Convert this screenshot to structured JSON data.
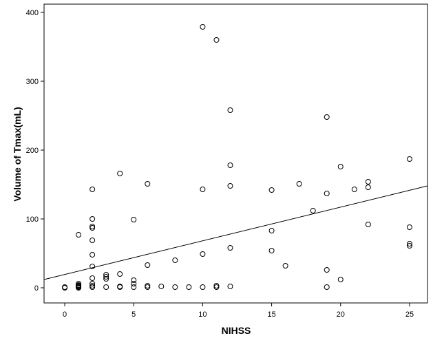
{
  "chart_data": {
    "type": "scatter",
    "title": "",
    "xlabel": "NIHSS",
    "ylabel": "Volume of Tmax(mL)",
    "xlim": [
      -1.5,
      26.3
    ],
    "ylim": [
      -22,
      412
    ],
    "xticks": [
      0,
      5,
      10,
      15,
      20,
      25
    ],
    "yticks": [
      0,
      100,
      200,
      300,
      400
    ],
    "grid": false,
    "legend": "none",
    "marker": "open-circle",
    "fit_line": {
      "x": [
        -1.5,
        26.3
      ],
      "y": [
        12,
        148
      ]
    },
    "points": [
      {
        "x": 0,
        "y": 1
      },
      {
        "x": 0,
        "y": 0
      },
      {
        "x": 1,
        "y": 77
      },
      {
        "x": 1,
        "y": 6
      },
      {
        "x": 1,
        "y": 4
      },
      {
        "x": 1,
        "y": 3
      },
      {
        "x": 1,
        "y": 2
      },
      {
        "x": 1,
        "y": 1
      },
      {
        "x": 1,
        "y": 0
      },
      {
        "x": 2,
        "y": 143
      },
      {
        "x": 2,
        "y": 100
      },
      {
        "x": 2,
        "y": 89
      },
      {
        "x": 2,
        "y": 87
      },
      {
        "x": 2,
        "y": 69
      },
      {
        "x": 2,
        "y": 48
      },
      {
        "x": 2,
        "y": 31
      },
      {
        "x": 2,
        "y": 14
      },
      {
        "x": 2,
        "y": 6
      },
      {
        "x": 2,
        "y": 3
      },
      {
        "x": 2,
        "y": 1
      },
      {
        "x": 3,
        "y": 19
      },
      {
        "x": 3,
        "y": 16
      },
      {
        "x": 3,
        "y": 13
      },
      {
        "x": 3,
        "y": 1
      },
      {
        "x": 4,
        "y": 166
      },
      {
        "x": 4,
        "y": 20
      },
      {
        "x": 4,
        "y": 2
      },
      {
        "x": 4,
        "y": 1
      },
      {
        "x": 5,
        "y": 99
      },
      {
        "x": 5,
        "y": 11
      },
      {
        "x": 5,
        "y": 6
      },
      {
        "x": 5,
        "y": 1
      },
      {
        "x": 6,
        "y": 151
      },
      {
        "x": 6,
        "y": 33
      },
      {
        "x": 6,
        "y": 3
      },
      {
        "x": 6,
        "y": 1
      },
      {
        "x": 7,
        "y": 2
      },
      {
        "x": 8,
        "y": 40
      },
      {
        "x": 8,
        "y": 1
      },
      {
        "x": 9,
        "y": 1
      },
      {
        "x": 10,
        "y": 379
      },
      {
        "x": 10,
        "y": 143
      },
      {
        "x": 10,
        "y": 49
      },
      {
        "x": 10,
        "y": 1
      },
      {
        "x": 11,
        "y": 360
      },
      {
        "x": 11,
        "y": 3
      },
      {
        "x": 11,
        "y": 1
      },
      {
        "x": 12,
        "y": 258
      },
      {
        "x": 12,
        "y": 178
      },
      {
        "x": 12,
        "y": 148
      },
      {
        "x": 12,
        "y": 58
      },
      {
        "x": 12,
        "y": 2
      },
      {
        "x": 15,
        "y": 142
      },
      {
        "x": 15,
        "y": 83
      },
      {
        "x": 15,
        "y": 54
      },
      {
        "x": 16,
        "y": 32
      },
      {
        "x": 17,
        "y": 151
      },
      {
        "x": 18,
        "y": 112
      },
      {
        "x": 19,
        "y": 248
      },
      {
        "x": 19,
        "y": 137
      },
      {
        "x": 19,
        "y": 26
      },
      {
        "x": 19,
        "y": 1
      },
      {
        "x": 20,
        "y": 176
      },
      {
        "x": 20,
        "y": 12
      },
      {
        "x": 21,
        "y": 143
      },
      {
        "x": 22,
        "y": 154
      },
      {
        "x": 22,
        "y": 146
      },
      {
        "x": 22,
        "y": 92
      },
      {
        "x": 25,
        "y": 187
      },
      {
        "x": 25,
        "y": 88
      },
      {
        "x": 25,
        "y": 64
      },
      {
        "x": 25,
        "y": 61
      }
    ]
  }
}
